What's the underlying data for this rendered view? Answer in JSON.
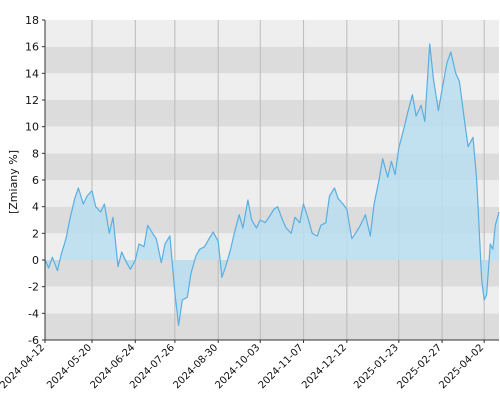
{
  "chart_data": {
    "type": "area",
    "title": "",
    "xlabel": "",
    "ylabel": "[Zmiany %]",
    "ylim": [
      -6,
      18
    ],
    "yticks": [
      -6,
      -4,
      -2,
      0,
      2,
      4,
      6,
      8,
      10,
      12,
      14,
      16,
      18
    ],
    "xticks": [
      "2024-04-12",
      "2024-05-20",
      "2024-06-24",
      "2024-07-26",
      "2024-08-30",
      "2024-10-03",
      "2024-11-07",
      "2024-12-12",
      "2025-01-23",
      "2025-02-27",
      "2025-04-02"
    ],
    "grid": true,
    "legend": "none",
    "colors": {
      "line": "#5aaee0",
      "fill": "#b9def0",
      "band_dark": "#dcdcdc",
      "band_light": "#eeeeee",
      "vgrid": "#bbbbbb",
      "axis": "#333333"
    },
    "series": [
      {
        "x": [
          "2024-04-12",
          "2024-04-15",
          "2024-04-18",
          "2024-04-22",
          "2024-04-25",
          "2024-04-29",
          "2024-05-02",
          "2024-05-06",
          "2024-05-09",
          "2024-05-13",
          "2024-05-16",
          "2024-05-20",
          "2024-05-23",
          "2024-05-27",
          "2024-05-30",
          "2024-06-03",
          "2024-06-06",
          "2024-06-10",
          "2024-06-13",
          "2024-06-17",
          "2024-06-20",
          "2024-06-24",
          "2024-06-27",
          "2024-07-01",
          "2024-07-04",
          "2024-07-08",
          "2024-07-11",
          "2024-07-15",
          "2024-07-18",
          "2024-07-22",
          "2024-07-26",
          "2024-07-29",
          "2024-08-01",
          "2024-08-05",
          "2024-08-08",
          "2024-08-12",
          "2024-08-15",
          "2024-08-19",
          "2024-08-22",
          "2024-08-26",
          "2024-08-30",
          "2024-09-02",
          "2024-09-05",
          "2024-09-09",
          "2024-09-12",
          "2024-09-16",
          "2024-09-19",
          "2024-09-23",
          "2024-09-26",
          "2024-09-30",
          "2024-10-03",
          "2024-10-07",
          "2024-10-10",
          "2024-10-14",
          "2024-10-17",
          "2024-10-21",
          "2024-10-24",
          "2024-10-28",
          "2024-10-31",
          "2024-11-04",
          "2024-11-07",
          "2024-11-11",
          "2024-11-14",
          "2024-11-18",
          "2024-11-21",
          "2024-11-25",
          "2024-11-28",
          "2024-12-02",
          "2024-12-05",
          "2024-12-09",
          "2024-12-12",
          "2024-12-16",
          "2024-12-19",
          "2024-12-23",
          "2024-12-27",
          "2024-12-31",
          "2025-01-03",
          "2025-01-07",
          "2025-01-10",
          "2025-01-14",
          "2025-01-17",
          "2025-01-20",
          "2025-01-23",
          "2025-01-27",
          "2025-01-30",
          "2025-02-03",
          "2025-02-06",
          "2025-02-10",
          "2025-02-13",
          "2025-02-17",
          "2025-02-20",
          "2025-02-24",
          "2025-02-27",
          "2025-03-03",
          "2025-03-06",
          "2025-03-10",
          "2025-03-13",
          "2025-03-17",
          "2025-03-20",
          "2025-03-24",
          "2025-03-27",
          "2025-03-31",
          "2025-04-02",
          "2025-04-04",
          "2025-04-07",
          "2025-04-09",
          "2025-04-11",
          "2025-04-14"
        ],
        "y": [
          0.0,
          -0.6,
          0.2,
          -0.8,
          0.4,
          1.6,
          3.0,
          4.6,
          5.4,
          4.2,
          4.8,
          5.2,
          4.0,
          3.6,
          4.2,
          2.0,
          3.2,
          -0.5,
          0.6,
          -0.2,
          -0.7,
          0.0,
          1.2,
          1.0,
          2.6,
          2.0,
          1.6,
          -0.2,
          1.2,
          1.8,
          -2.5,
          -4.9,
          -3.0,
          -2.8,
          -1.0,
          0.3,
          0.8,
          1.0,
          1.5,
          2.1,
          1.4,
          -1.3,
          -0.5,
          0.8,
          2.0,
          3.4,
          2.4,
          4.5,
          3.0,
          2.4,
          3.0,
          2.8,
          3.2,
          3.8,
          4.0,
          3.0,
          2.4,
          2.0,
          3.2,
          2.8,
          4.2,
          3.0,
          2.0,
          1.8,
          2.6,
          2.8,
          4.8,
          5.4,
          4.6,
          4.2,
          3.8,
          1.6,
          2.0,
          2.6,
          3.4,
          1.8,
          4.2,
          6.0,
          7.6,
          6.2,
          7.4,
          6.4,
          8.4,
          9.8,
          11.0,
          12.4,
          10.8,
          11.6,
          10.4,
          16.2,
          13.6,
          11.2,
          12.8,
          14.8,
          15.6,
          14.0,
          13.4,
          10.5,
          8.5,
          9.2,
          6.0,
          -1.5,
          -3.0,
          -2.6,
          1.2,
          0.8,
          2.6,
          3.6
        ]
      }
    ]
  }
}
